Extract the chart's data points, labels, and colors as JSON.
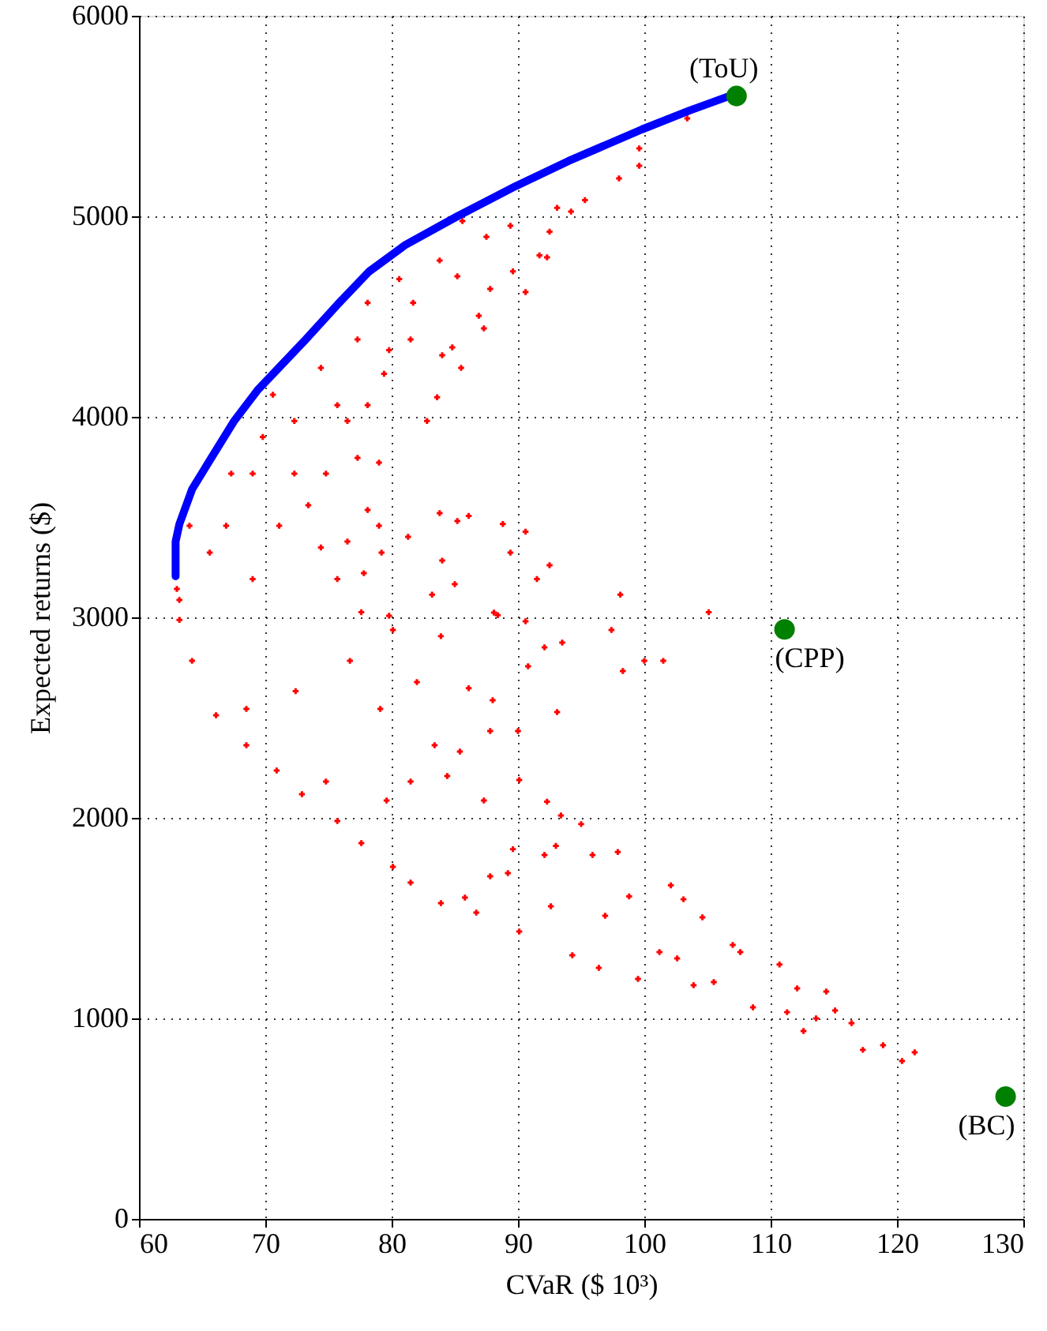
{
  "chart_data": {
    "type": "scatter",
    "xlabel": "CVaR ($ 10³)",
    "ylabel": "Expected returns ($)",
    "xlim": [
      60,
      130
    ],
    "xticks": [
      60,
      70,
      80,
      90,
      100,
      110,
      120,
      130
    ],
    "ylim": [
      0,
      6000
    ],
    "yticks": [
      0,
      1000,
      2000,
      3000,
      4000,
      5000,
      6000
    ],
    "grid": true,
    "series": [
      {
        "marker": "cross",
        "color": "#ff0000",
        "x": [
          63.2,
          64.2,
          66.1,
          68.5,
          70.9,
          72.9,
          75.7,
          77.6,
          80.1,
          81.5,
          83.9,
          86.7,
          90.1,
          94.3,
          96.4,
          99.5,
          103.9,
          105.5,
          108.6,
          111.3,
          112.6,
          115.1,
          116.4,
          117.3,
          118.9,
          120.4,
          121.4,
          105.1,
          101.5,
          100.0,
          98.3,
          97.4,
          93.1,
          93.5,
          92.1,
          90.6,
          90.8,
          88.4,
          90.0,
          87.8,
          90.1,
          92.3,
          93.4,
          95.0,
          97.9,
          98.8,
          102.1,
          103.1,
          104.6,
          107.0,
          107.6,
          110.7,
          112.1,
          114.4,
          113.6,
          93.0,
          95.9,
          92.1,
          89.6,
          87.8,
          85.8,
          89.2,
          92.6,
          96.9,
          101.2,
          102.6,
          85.4,
          87.3,
          83.4,
          84.4,
          82.0,
          81.5,
          79.1,
          79.6,
          76.7,
          74.8,
          72.4,
          68.5,
          83.9,
          86.1,
          88.0,
          80.1,
          77.6,
          103.4,
          99.6,
          99.6,
          98.0,
          95.3,
          94.2,
          93.1,
          92.5,
          92.3,
          91.7,
          90.6,
          89.4,
          89.6,
          87.8,
          87.3,
          86.9,
          87.5,
          85.6,
          85.5,
          84.8,
          84.0,
          85.2,
          83.8,
          83.6,
          82.8,
          81.7,
          81.5,
          80.6,
          79.8,
          79.4,
          78.1,
          77.3,
          78.1,
          76.5,
          75.7,
          74.4,
          74.8,
          77.3,
          79.0,
          78.1,
          79.0,
          81.3,
          79.2,
          77.8,
          75.7,
          76.5,
          74.4,
          73.4,
          72.3,
          72.3,
          70.6,
          69.8,
          69.0,
          67.3,
          66.9,
          71.1,
          69.0,
          65.6,
          64.0,
          83.8,
          85.2,
          86.1,
          88.8,
          90.6,
          89.4,
          84.0,
          85.0,
          83.2,
          92.5,
          91.5,
          98.1,
          79.8,
          88.1,
          63.0,
          63.2
        ],
        "values": [
          3087,
          2783,
          2512,
          2362,
          2236,
          2118,
          1984,
          1874,
          1756,
          1677,
          1575,
          1528,
          1433,
          1315,
          1252,
          1197,
          1165,
          1181,
          1055,
          1031,
          937,
          1039,
          976,
          843,
          866,
          787,
          831,
          3026,
          2783,
          2783,
          2732,
          2937,
          2528,
          2874,
          2850,
          2980,
          2756,
          3011,
          2433,
          2433,
          2189,
          2081,
          2012,
          1969,
          1830,
          1608,
          1663,
          1594,
          1504,
          1366,
          1331,
          1269,
          1150,
          1134,
          1000,
          1860,
          1815,
          1815,
          1844,
          1709,
          1602,
          1724,
          1559,
          1512,
          1331,
          1299,
          2331,
          2087,
          2362,
          2209,
          2677,
          2181,
          2543,
          2087,
          2783,
          2181,
          2632,
          2543,
          2906,
          2647,
          2587,
          2937,
          3026,
          5488,
          5252,
          5339,
          5189,
          5081,
          5024,
          5042,
          4923,
          4795,
          4805,
          4622,
          4953,
          4725,
          4638,
          4441,
          4504,
          4898,
          4976,
          4244,
          4346,
          4307,
          4701,
          4780,
          4097,
          3979,
          4569,
          4386,
          4687,
          4333,
          4215,
          4569,
          4386,
          4058,
          3979,
          4058,
          4244,
          3717,
          3795,
          3772,
          3535,
          3457,
          3402,
          3323,
          3220,
          3191,
          3378,
          3348,
          3559,
          3717,
          3979,
          4110,
          3900,
          3717,
          3717,
          3457,
          3457,
          3191,
          3323,
          3457,
          3520,
          3480,
          3506,
          3466,
          3427,
          3323,
          3283,
          3165,
          3113,
          3260,
          3191,
          3113,
          3008,
          3024,
          3142,
          2987
        ]
      },
      {
        "type": "line",
        "marker": "none",
        "color": "#0000ff",
        "x": [
          62.9,
          62.9,
          63.2,
          64.2,
          65.5,
          67.5,
          69.4,
          73.2,
          75.7,
          78.2,
          81.1,
          85.2,
          89.8,
          94.0,
          99.8,
          103.6,
          107.0,
          107.3
        ],
        "values": [
          3205,
          3378,
          3465,
          3638,
          3772,
          3976,
          4134,
          4386,
          4559,
          4724,
          4858,
          5000,
          5150,
          5276,
          5433,
          5528,
          5606,
          5600
        ]
      },
      {
        "marker": "circle",
        "color": "#008000",
        "x": [
          107.3,
          111.1,
          128.6
        ],
        "values": [
          5600,
          2940,
          610
        ]
      }
    ],
    "annotations": [
      {
        "text": "(ToU)",
        "x": 107.3,
        "y": 5600
      },
      {
        "text": "(CPP)",
        "x": 111.1,
        "y": 2940
      },
      {
        "text": "(BC)",
        "x": 128.6,
        "y": 610
      }
    ]
  }
}
